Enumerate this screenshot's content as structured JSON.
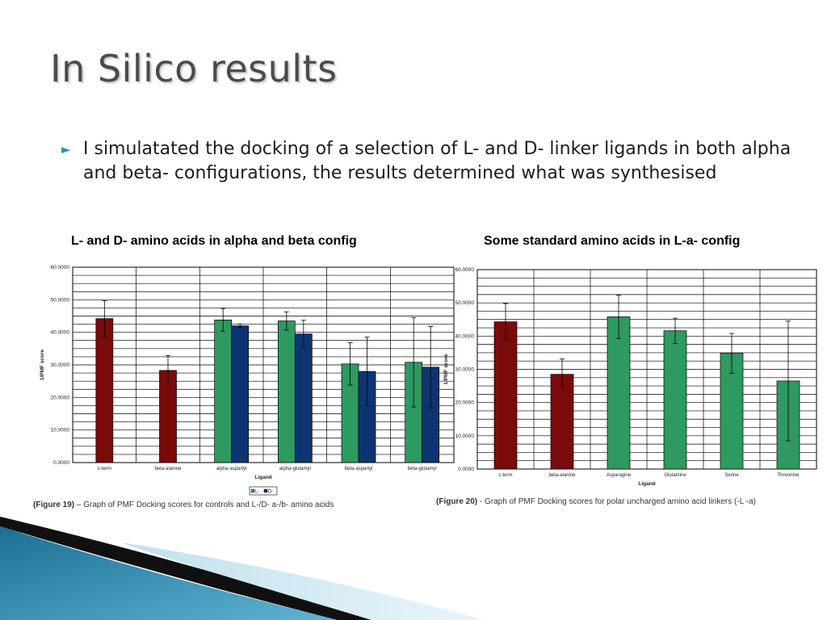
{
  "slide": {
    "title": "In Silico results",
    "bullet": "I simulatated the docking of a selection of L- and D- linker ligands in both alpha and beta- configurations, the results determined what was synthesised",
    "colors": {
      "dark_red": "#7b0a0a",
      "green": "#2e9960",
      "navy": "#0d3572",
      "accent": "#2f8fb5"
    }
  },
  "chart_data": [
    {
      "type": "bar",
      "heading": "L- and D- amino acids in alpha and beta config",
      "ylabel": "1/PMF score",
      "xlabel": "Ligand",
      "ylim": [
        0,
        60
      ],
      "yticks": [
        "0.0000",
        "10.0000",
        "20.0000",
        "30.0000",
        "40.0000",
        "50.0000",
        "60.0000"
      ],
      "categories": [
        "c-term",
        "beta-alanine",
        "alpha-aspartyl",
        "alpha-glutamyl",
        "beta-aspartyl",
        "beta-glutamyl"
      ],
      "legend": [
        "L-",
        "D-"
      ],
      "legend_position": "bottom",
      "grid": true,
      "bars": [
        {
          "category": 0,
          "group": "control",
          "value": 44.2,
          "err": 5.5
        },
        {
          "category": 1,
          "group": "control",
          "value": 28.3,
          "err": 4.6
        },
        {
          "category": 2,
          "group": "L",
          "value": 43.8,
          "err": 3.5
        },
        {
          "category": 2,
          "group": "D",
          "value": 42.0,
          "err": 0.5
        },
        {
          "category": 3,
          "group": "L",
          "value": 43.5,
          "err": 2.8
        },
        {
          "category": 3,
          "group": "D",
          "value": 39.5,
          "err": 4.2
        },
        {
          "category": 4,
          "group": "L",
          "value": 30.3,
          "err": 6.5
        },
        {
          "category": 4,
          "group": "D",
          "value": 28.0,
          "err": 10.5
        },
        {
          "category": 5,
          "group": "L",
          "value": 30.8,
          "err": 13.7
        },
        {
          "category": 5,
          "group": "D",
          "value": 29.3,
          "err": 12.5
        }
      ],
      "caption_label": "(Figure 19)",
      "caption_text": " – Graph of PMF Docking scores for controls and L-/D- a-/b- amino acids"
    },
    {
      "type": "bar",
      "heading": "Some standard amino acids in L-a- config",
      "ylabel": "1/PMF score",
      "xlabel": "Ligand",
      "ylim": [
        0,
        60
      ],
      "yticks": [
        "0.0000",
        "10.0000",
        "20.0000",
        "30.0000",
        "40.0000",
        "50.0000",
        "60.0000"
      ],
      "categories": [
        "c-term",
        "beta-alanine",
        "Asparagine",
        "Glutamine",
        "Serine",
        "Threonine"
      ],
      "grid": true,
      "bars": [
        {
          "category": 0,
          "group": "control",
          "value": 44.3,
          "err": 5.5
        },
        {
          "category": 1,
          "group": "control",
          "value": 28.5,
          "err": 4.6
        },
        {
          "category": 2,
          "group": "L",
          "value": 45.8,
          "err": 6.5
        },
        {
          "category": 3,
          "group": "L",
          "value": 41.6,
          "err": 3.8
        },
        {
          "category": 4,
          "group": "L",
          "value": 34.8,
          "err": 6.0
        },
        {
          "category": 5,
          "group": "L",
          "value": 26.5,
          "err": 18.0
        }
      ],
      "caption_label": "(Figure 20)",
      "caption_text": " -  Graph of PMF Docking scores for polar uncharged amino acid linkers (-L -a)"
    }
  ]
}
